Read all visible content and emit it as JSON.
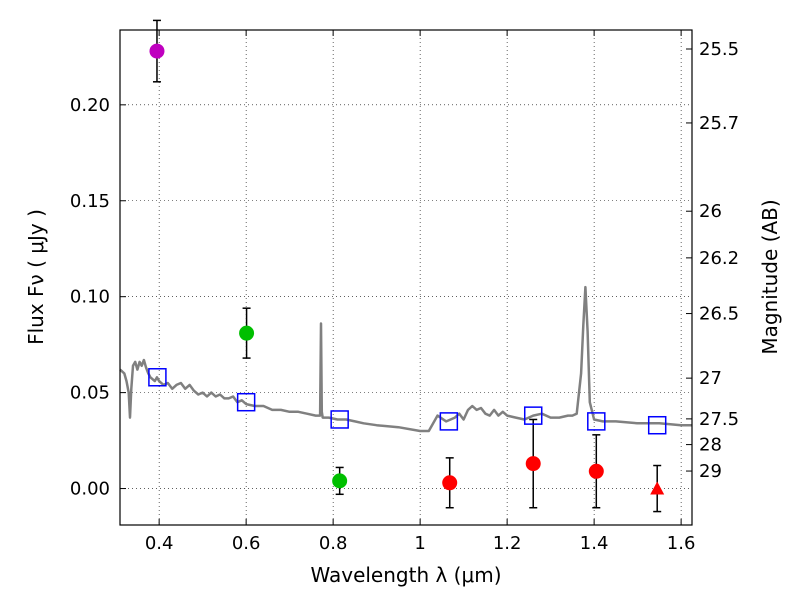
{
  "chart_data": {
    "type": "scatter",
    "xlabel": "Wavelength  λ (μm)",
    "ylabel": "Flux  Fν  ( μJy )",
    "y2label": "Magnitude (AB)",
    "xlim": [
      0.31,
      1.625
    ],
    "ylim": [
      -0.019,
      0.239
    ],
    "x_ticks": [
      0.4,
      0.6,
      0.8,
      1.0,
      1.2,
      1.4,
      1.6
    ],
    "x_tick_labels": [
      "0.4",
      "0.6",
      "0.8",
      "1",
      "1.2",
      "1.4",
      "1.6"
    ],
    "y_ticks": [
      0.0,
      0.05,
      0.1,
      0.15,
      0.2
    ],
    "y_tick_labels": [
      "0.00",
      "0.05",
      "0.10",
      "0.15",
      "0.20"
    ],
    "mag_ticks": [
      {
        "value": 25.5,
        "label": "25.5"
      },
      {
        "value": 25.7,
        "label": "25.7"
      },
      {
        "value": 26,
        "label": "26"
      },
      {
        "value": 26.2,
        "label": "26.2"
      },
      {
        "value": 26.5,
        "label": "26.5"
      },
      {
        "value": 27,
        "label": "27"
      },
      {
        "value": 27.5,
        "label": "27.5"
      },
      {
        "value": 28,
        "label": "28"
      },
      {
        "value": 29,
        "label": "29"
      }
    ],
    "grid": true,
    "colors": {
      "model": "#808080",
      "purple": "#bf00bf",
      "green": "#00bf00",
      "red": "#ff0000",
      "blue": "#0000ff",
      "errorbar": "#000000"
    },
    "model_spectrum": {
      "name": "model SED",
      "x": [
        0.31,
        0.315,
        0.32,
        0.325,
        0.33,
        0.333,
        0.336,
        0.34,
        0.345,
        0.35,
        0.355,
        0.36,
        0.365,
        0.37,
        0.375,
        0.38,
        0.385,
        0.39,
        0.395,
        0.4,
        0.41,
        0.42,
        0.43,
        0.44,
        0.45,
        0.46,
        0.47,
        0.48,
        0.49,
        0.5,
        0.51,
        0.52,
        0.53,
        0.54,
        0.55,
        0.56,
        0.57,
        0.58,
        0.59,
        0.6,
        0.62,
        0.64,
        0.66,
        0.68,
        0.7,
        0.72,
        0.74,
        0.76,
        0.77,
        0.772,
        0.774,
        0.776,
        0.79,
        0.81,
        0.83,
        0.85,
        0.87,
        0.9,
        0.95,
        1.0,
        1.02,
        1.04,
        1.06,
        1.07,
        1.08,
        1.09,
        1.1,
        1.11,
        1.12,
        1.13,
        1.14,
        1.15,
        1.16,
        1.17,
        1.18,
        1.19,
        1.2,
        1.22,
        1.24,
        1.26,
        1.28,
        1.3,
        1.32,
        1.34,
        1.35,
        1.36,
        1.37,
        1.375,
        1.38,
        1.385,
        1.39,
        1.4,
        1.42,
        1.45,
        1.5,
        1.55,
        1.6,
        1.625
      ],
      "y": [
        0.062,
        0.061,
        0.06,
        0.056,
        0.05,
        0.037,
        0.052,
        0.064,
        0.066,
        0.062,
        0.066,
        0.064,
        0.067,
        0.063,
        0.06,
        0.058,
        0.057,
        0.056,
        0.058,
        0.056,
        0.054,
        0.055,
        0.052,
        0.054,
        0.055,
        0.052,
        0.054,
        0.051,
        0.049,
        0.05,
        0.048,
        0.05,
        0.048,
        0.049,
        0.047,
        0.047,
        0.048,
        0.045,
        0.046,
        0.044,
        0.043,
        0.043,
        0.041,
        0.041,
        0.04,
        0.04,
        0.039,
        0.038,
        0.038,
        0.086,
        0.04,
        0.037,
        0.037,
        0.036,
        0.036,
        0.035,
        0.034,
        0.033,
        0.032,
        0.03,
        0.03,
        0.038,
        0.035,
        0.036,
        0.037,
        0.039,
        0.036,
        0.041,
        0.043,
        0.041,
        0.042,
        0.039,
        0.038,
        0.041,
        0.038,
        0.04,
        0.038,
        0.037,
        0.036,
        0.038,
        0.039,
        0.037,
        0.037,
        0.038,
        0.038,
        0.039,
        0.06,
        0.085,
        0.105,
        0.082,
        0.045,
        0.036,
        0.035,
        0.035,
        0.034,
        0.034,
        0.033,
        0.033
      ]
    },
    "series": [
      {
        "name": "purple point",
        "marker": "circle",
        "color": "purple",
        "x": [
          0.395
        ],
        "y": [
          0.228
        ],
        "err": [
          0.016
        ]
      },
      {
        "name": "green points",
        "marker": "circle",
        "color": "green",
        "x": [
          0.601,
          0.815
        ],
        "y": [
          0.081,
          0.004
        ],
        "err": [
          0.013,
          0.007
        ]
      },
      {
        "name": "red points",
        "marker": "circle",
        "color": "red",
        "x": [
          1.068,
          1.26,
          1.405
        ],
        "y": [
          0.003,
          0.013,
          0.009
        ],
        "err": [
          0.013,
          0.023,
          0.019
        ]
      },
      {
        "name": "red upper limit",
        "marker": "triangle",
        "color": "red",
        "x": [
          1.545
        ],
        "y": [
          0.0
        ],
        "err": [
          0.012
        ]
      },
      {
        "name": "model photometry",
        "marker": "open-square",
        "color": "blue",
        "x": [
          0.396,
          0.6,
          0.815,
          1.066,
          1.26,
          1.405,
          1.545
        ],
        "y": [
          0.058,
          0.045,
          0.036,
          0.035,
          0.038,
          0.035,
          0.033
        ],
        "err": [
          0,
          0,
          0,
          0,
          0,
          0,
          0
        ]
      }
    ]
  }
}
